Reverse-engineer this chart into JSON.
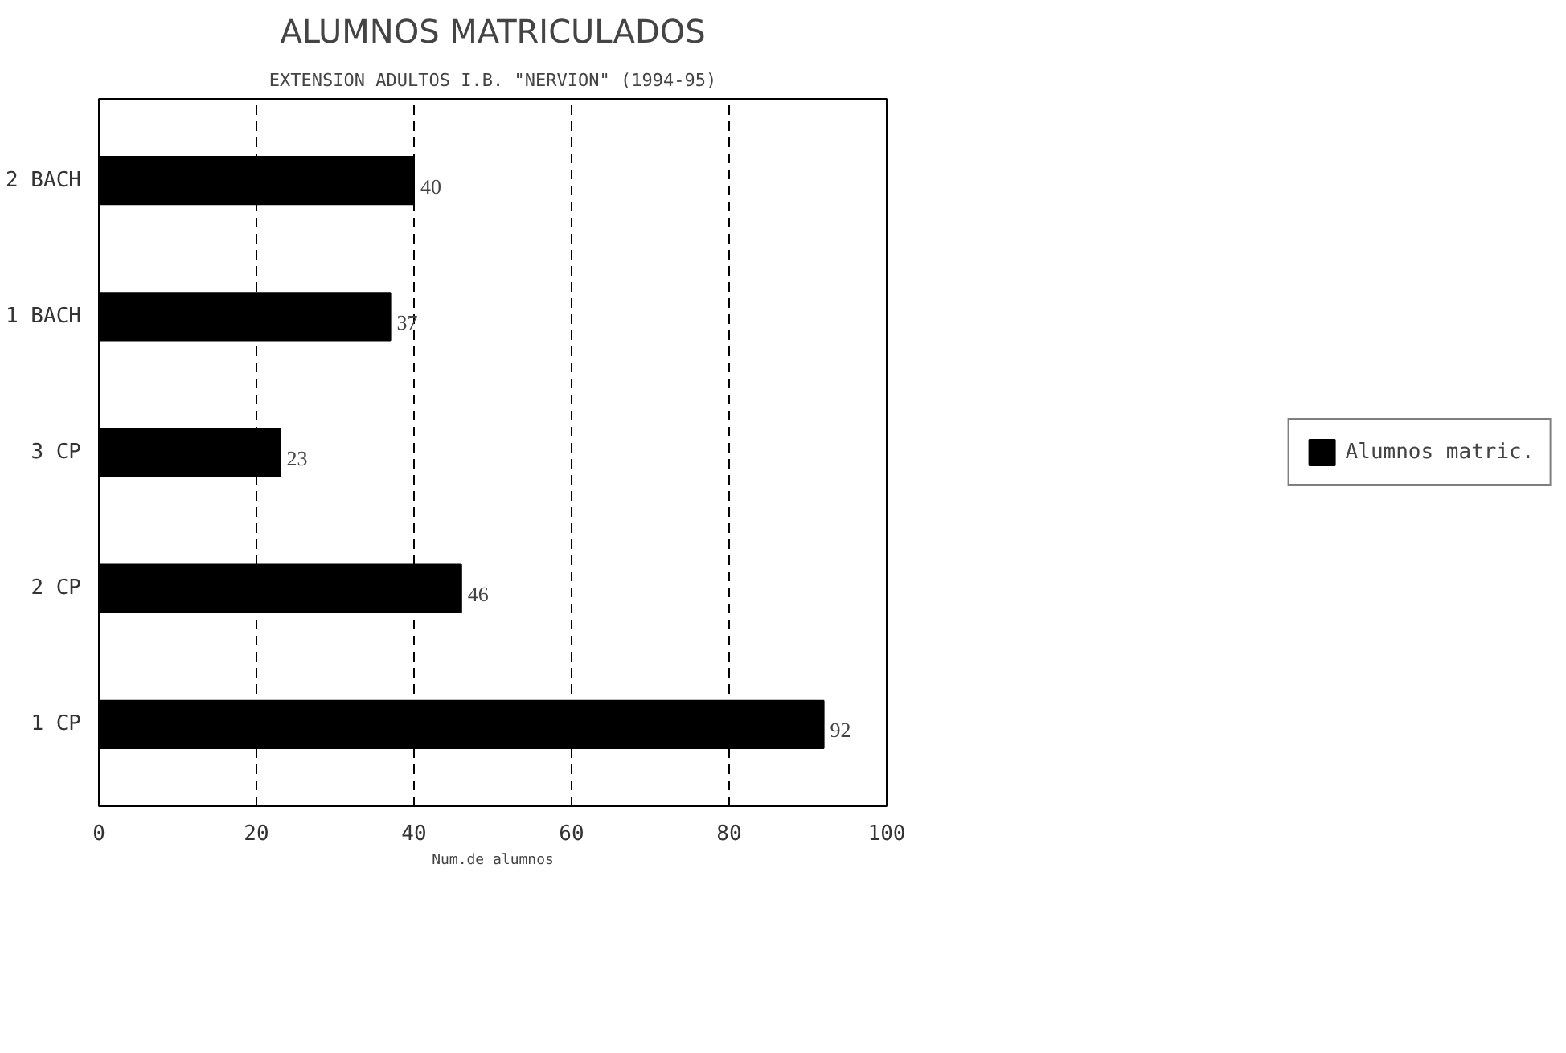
{
  "chart_data": {
    "type": "bar",
    "orientation": "horizontal",
    "title": "ALUMNOS MATRICULADOS",
    "subtitle": "EXTENSION ADULTOS I.B. \"NERVION\" (1994-95)",
    "xlabel": "Num.de alumnos",
    "categories": [
      "2 BACH",
      "1 BACH",
      "3 CP",
      "2 CP",
      "1 CP"
    ],
    "series": [
      {
        "name": "Alumnos matric.",
        "color": "#000000",
        "values": [
          40,
          37,
          23,
          46,
          92
        ]
      }
    ],
    "xlim": [
      0,
      100
    ],
    "xticks": [
      0,
      20,
      40,
      60,
      80,
      100
    ],
    "grid": "x",
    "legend": "right",
    "data_labels": true
  }
}
